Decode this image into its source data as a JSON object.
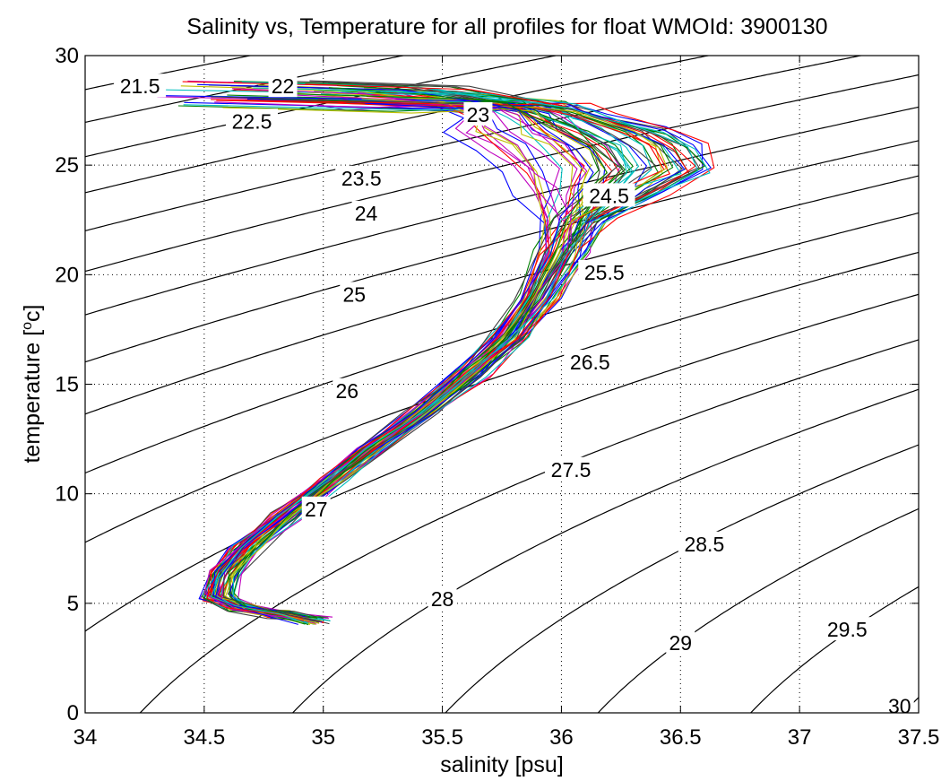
{
  "chart_data": {
    "type": "line",
    "title": "Salinity vs, Temperature for all profiles for float WMOId: 3900130",
    "xlabel": "salinity [psu]",
    "ylabel_main": "temperature [",
    "ylabel_sup": "o",
    "ylabel_end": "c]",
    "xlim": [
      34,
      37.5
    ],
    "ylim": [
      0,
      30
    ],
    "xticks": [
      34,
      34.5,
      35,
      35.5,
      36,
      36.5,
      37,
      37.5
    ],
    "xtick_labels": [
      "34",
      "34.5",
      "35",
      "35.5",
      "36",
      "36.5",
      "37",
      "37.5"
    ],
    "yticks": [
      0,
      5,
      10,
      15,
      20,
      25,
      30
    ],
    "ytick_labels": [
      "0",
      "5",
      "10",
      "15",
      "20",
      "25",
      "30"
    ],
    "grid": true,
    "density_contours": {
      "levels": [
        21.5,
        22,
        22.5,
        23,
        23.5,
        24,
        24.5,
        25,
        25.5,
        26,
        26.5,
        27,
        27.5,
        28,
        28.5,
        29,
        29.5,
        30
      ],
      "labels": [
        {
          "text": "21.5",
          "s": 34.23,
          "t": 28.6
        },
        {
          "text": "22",
          "s": 34.83,
          "t": 28.6
        },
        {
          "text": "22.5",
          "s": 34.7,
          "t": 27.0
        },
        {
          "text": "23",
          "s": 35.65,
          "t": 27.3
        },
        {
          "text": "23.5",
          "s": 35.16,
          "t": 24.4
        },
        {
          "text": "24",
          "s": 35.18,
          "t": 22.8
        },
        {
          "text": "24.5",
          "s": 36.2,
          "t": 23.6
        },
        {
          "text": "25",
          "s": 35.13,
          "t": 19.1
        },
        {
          "text": "25.5",
          "s": 36.18,
          "t": 20.1
        },
        {
          "text": "26",
          "s": 35.1,
          "t": 14.7
        },
        {
          "text": "26.5",
          "s": 36.12,
          "t": 16.0
        },
        {
          "text": "27",
          "s": 34.97,
          "t": 9.3
        },
        {
          "text": "27.5",
          "s": 36.04,
          "t": 11.1
        },
        {
          "text": "28",
          "s": 35.5,
          "t": 5.2
        },
        {
          "text": "28.5",
          "s": 36.6,
          "t": 7.7
        },
        {
          "text": "29",
          "s": 36.5,
          "t": 3.2
        },
        {
          "text": "29.5",
          "s": 37.2,
          "t": 3.8
        },
        {
          "text": "30",
          "s": 37.42,
          "t": 0.3
        }
      ]
    },
    "profiles": {
      "count": 60,
      "colors": [
        "#0000ff",
        "#008000",
        "#ff0000",
        "#00bfbf",
        "#bf00bf",
        "#bfbf00",
        "#404040"
      ],
      "centerline": [
        [
          34.96,
          4.2
        ],
        [
          34.82,
          4.5
        ],
        [
          34.65,
          4.8
        ],
        [
          34.56,
          5.3
        ],
        [
          34.58,
          6.3
        ],
        [
          34.68,
          7.6
        ],
        [
          34.84,
          9.0
        ],
        [
          35.03,
          10.6
        ],
        [
          35.2,
          12.0
        ],
        [
          35.42,
          13.7
        ],
        [
          35.62,
          15.5
        ],
        [
          35.78,
          17.2
        ],
        [
          35.9,
          19.0
        ],
        [
          36.0,
          21.0
        ],
        [
          36.03,
          22.5
        ],
        [
          36.06,
          23.8
        ],
        [
          36.08,
          24.8
        ],
        [
          36.0,
          25.8
        ],
        [
          35.88,
          26.6
        ],
        [
          35.82,
          27.3
        ],
        [
          35.7,
          27.75
        ],
        [
          35.3,
          27.85
        ],
        [
          34.85,
          27.9
        ]
      ]
    }
  }
}
